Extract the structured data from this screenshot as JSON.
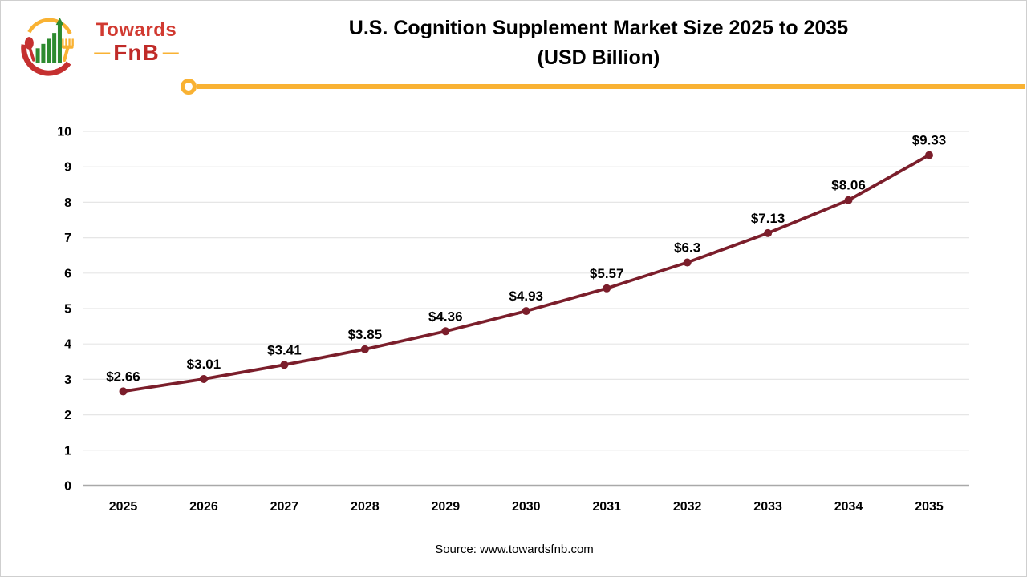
{
  "header": {
    "brand": {
      "name_top": "Towards",
      "name_bottom": "FnB",
      "dash": "—"
    },
    "title_line1": "U.S. Cognition Supplement Market Size 2025 to 2035",
    "title_line2": "(USD Billion)"
  },
  "footer": {
    "source": "Source: www.towardsfnb.com"
  },
  "colors": {
    "brand_red": "#c02b28",
    "brand_yellow": "#f9b233",
    "logo_green": "#2e8b30",
    "line": "#7b1e2b",
    "grid": "#e6e6e6",
    "axis": "#a9a9a9"
  },
  "chart_data": {
    "type": "line",
    "title": "U.S. Cognition Supplement Market Size 2025 to 2035 (USD Billion)",
    "categories": [
      "2025",
      "2026",
      "2027",
      "2028",
      "2029",
      "2030",
      "2031",
      "2032",
      "2033",
      "2034",
      "2035"
    ],
    "values": [
      2.66,
      3.01,
      3.41,
      3.85,
      4.36,
      4.93,
      5.57,
      6.3,
      7.13,
      8.06,
      9.33
    ],
    "point_labels": [
      "$2.66",
      "$3.01",
      "$3.41",
      "$3.85",
      "$4.36",
      "$4.93",
      "$5.57",
      "$6.3",
      "$7.13",
      "$8.06",
      "$9.33"
    ],
    "xlabel": "",
    "ylabel": "",
    "ylim": [
      0,
      10
    ],
    "y_ticks": [
      0,
      1,
      2,
      3,
      4,
      5,
      6,
      7,
      8,
      9,
      10
    ],
    "grid": true,
    "legend": false,
    "line_color": "#7b1e2b",
    "marker": "circle"
  }
}
